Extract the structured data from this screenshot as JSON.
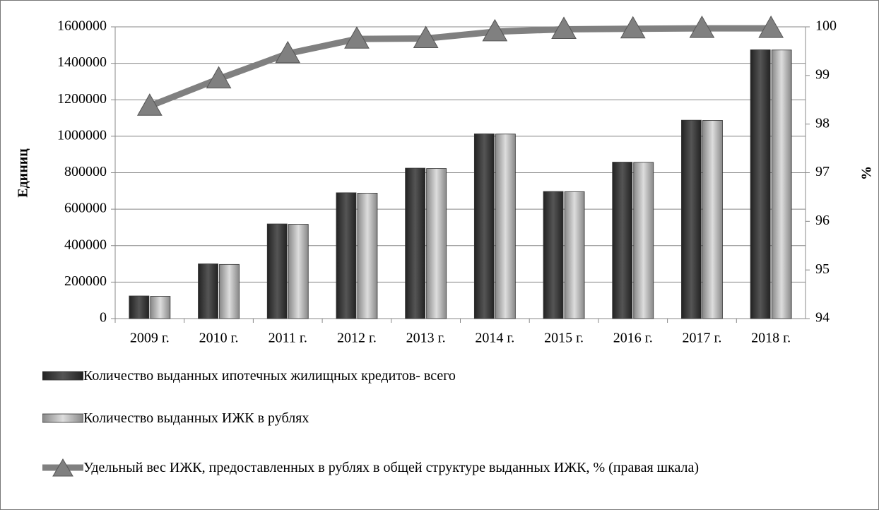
{
  "chart_data": {
    "type": "bar_line",
    "categories": [
      "2009 г.",
      "2010 г.",
      "2011 г.",
      "2012 г.",
      "2013 г.",
      "2014 г.",
      "2015 г.",
      "2016 г.",
      "2017 г.",
      "2018 г."
    ],
    "series": [
      {
        "name": "Количество выданных ипотечных жилищных кредитов- всего",
        "color": "#404040",
        "values": [
          124000,
          300000,
          519000,
          690000,
          825000,
          1013000,
          697000,
          858000,
          1088000,
          1474000
        ]
      },
      {
        "name": "Количество выданных ИЖК в рублях",
        "color": "#b4b4b4",
        "values": [
          122000,
          297000,
          517000,
          688000,
          823000,
          1012000,
          696000,
          857000,
          1087000,
          1473000
        ]
      },
      {
        "name": "Удельный вес ИЖК, предоставленных в рублях в общей структуре выданных ИЖК, % (правая шкала)",
        "color": "#808080",
        "axis": "y2",
        "values": [
          98.37,
          98.93,
          99.45,
          99.75,
          99.76,
          99.9,
          99.95,
          99.96,
          99.97,
          99.97
        ]
      }
    ],
    "ylabel": "Единиц",
    "y2label": "%",
    "ylim": [
      0,
      1600000
    ],
    "yticks": [
      0,
      200000,
      400000,
      600000,
      800000,
      1000000,
      1200000,
      1400000,
      1600000
    ],
    "y2lim": [
      94,
      100
    ],
    "y2ticks": [
      94,
      95,
      96,
      97,
      98,
      99,
      100
    ],
    "grid": true
  }
}
